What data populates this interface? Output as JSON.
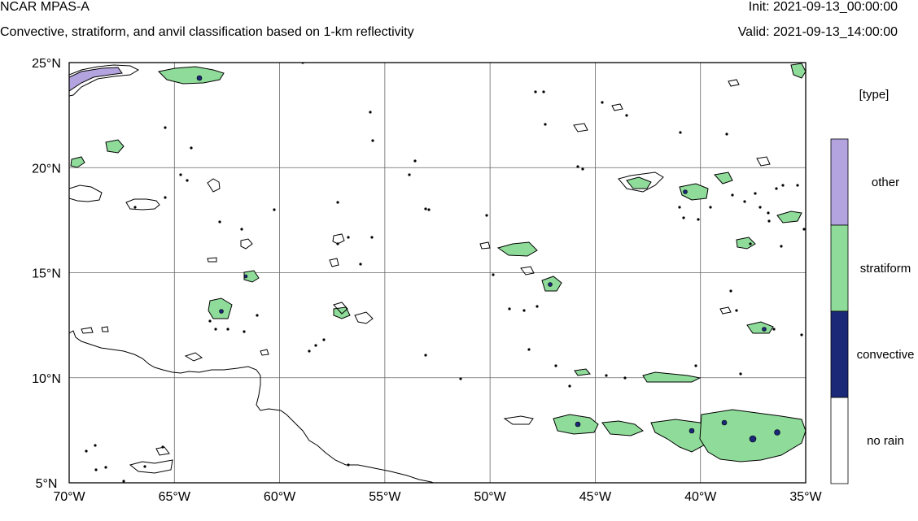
{
  "header": {
    "model": "NCAR MPAS-A",
    "description": "Convective, stratiform, and anvil classification based on 1-km reflectivity",
    "init": "Init: 2021-09-13_00:00:00",
    "valid": "Valid: 2021-09-13_14:00:00"
  },
  "map": {
    "lon_range": [
      -70,
      -35
    ],
    "lat_range": [
      5,
      25
    ],
    "grid": true,
    "lon_ticks": [
      {
        "value": -70,
        "label": "70°W"
      },
      {
        "value": -65,
        "label": "65°W"
      },
      {
        "value": -60,
        "label": "60°W"
      },
      {
        "value": -55,
        "label": "55°W"
      },
      {
        "value": -50,
        "label": "50°W"
      },
      {
        "value": -45,
        "label": "45°W"
      },
      {
        "value": -40,
        "label": "40°W"
      },
      {
        "value": -35,
        "label": "35°W"
      }
    ],
    "lat_ticks": [
      {
        "value": 5,
        "label": "5°N"
      },
      {
        "value": 10,
        "label": "10°N"
      },
      {
        "value": 15,
        "label": "15°N"
      },
      {
        "value": 20,
        "label": "20°N"
      },
      {
        "value": 25,
        "label": "25°N"
      }
    ],
    "coastline_color": "#000000"
  },
  "legend": {
    "title": "[type]",
    "entries": [
      {
        "label": "other",
        "color": "#b3a3de"
      },
      {
        "label": "stratiform",
        "color": "#8fdc9a"
      },
      {
        "label": "convective",
        "color": "#1b2878"
      },
      {
        "label": "no rain",
        "color": "#ffffff"
      }
    ]
  }
}
